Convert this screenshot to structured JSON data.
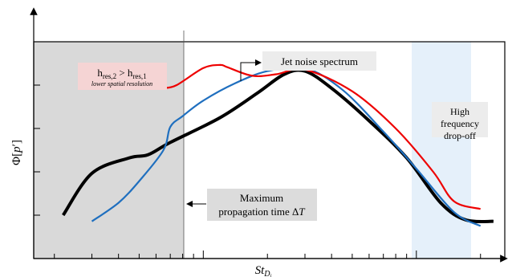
{
  "chart_data": {
    "type": "line",
    "title": "",
    "xlabel_main": "St",
    "xlabel_sub": "D",
    "xlabel_subsub": "j",
    "ylabel_main": "Φ[",
    "ylabel_italic": "p",
    "ylabel_prime": "′",
    "ylabel_close": "]",
    "x_scale": "log",
    "grid": false,
    "legend": "none",
    "series": [
      {
        "color": "#000000",
        "points": [
          [
            2.2,
            -9.2
          ],
          [
            3,
            -6.5
          ],
          [
            4.5,
            -5.5
          ],
          [
            5.5,
            -5.3
          ],
          [
            7,
            -4.5
          ],
          [
            12,
            -2.9
          ],
          [
            18,
            -1.3
          ],
          [
            24,
            -0.1
          ],
          [
            30,
            0.1
          ],
          [
            40,
            -1.0
          ],
          [
            60,
            -3.1
          ],
          [
            90,
            -5.5
          ],
          [
            130,
            -8.4
          ],
          [
            170,
            -9.5
          ],
          [
            230,
            -9.6
          ]
        ]
      },
      {
        "color": "#1f6fbf",
        "points": [
          [
            3,
            -9.6
          ],
          [
            4,
            -8.4
          ],
          [
            5,
            -7.0
          ],
          [
            6.5,
            -5.0
          ],
          [
            7,
            -3.5
          ],
          [
            8,
            -2.8
          ],
          [
            10,
            -1.8
          ],
          [
            14,
            -0.7
          ],
          [
            20,
            0.1
          ],
          [
            30,
            0.3
          ],
          [
            45,
            -1.1
          ],
          [
            70,
            -3.8
          ],
          [
            100,
            -6.2
          ],
          [
            150,
            -9.0
          ],
          [
            200,
            -9.9
          ]
        ]
      },
      {
        "color": "#ee0000",
        "points": [
          [
            6.5,
            -1.0
          ],
          [
            7.5,
            -0.8
          ],
          [
            10,
            0.3
          ],
          [
            12,
            0.5
          ],
          [
            13,
            0.35
          ],
          [
            17,
            -0.2
          ],
          [
            22,
            -0.1
          ],
          [
            30,
            0.2
          ],
          [
            50,
            -1.2
          ],
          [
            80,
            -3.6
          ],
          [
            120,
            -6.4
          ],
          [
            150,
            -8.3
          ],
          [
            200,
            -8.8
          ]
        ]
      }
    ],
    "annotations": {
      "jet_noise": "Jet noise spectrum",
      "high_freq_1": "High",
      "high_freq_2": "frequency",
      "high_freq_3": "drop-off",
      "max_prop_1": "Maximum",
      "max_prop_2": "propagation time Δ",
      "max_prop_3": "T",
      "hres_h1": "h",
      "hres_sub1": "res,2",
      "hres_gt": " > ",
      "hres_h2": "h",
      "hres_sub2": "res,1",
      "hres_note": "lower spatial resolution"
    },
    "colors": {
      "low_res_region": "#d9d9d9",
      "high_freq_region": "#e5f0fa",
      "max_prop_box": "#dcdcdc",
      "hres_box": "#f5d4d4",
      "black_curve": "#000000",
      "blue_curve": "#1f6fbf",
      "red_curve": "#ee0000"
    }
  }
}
